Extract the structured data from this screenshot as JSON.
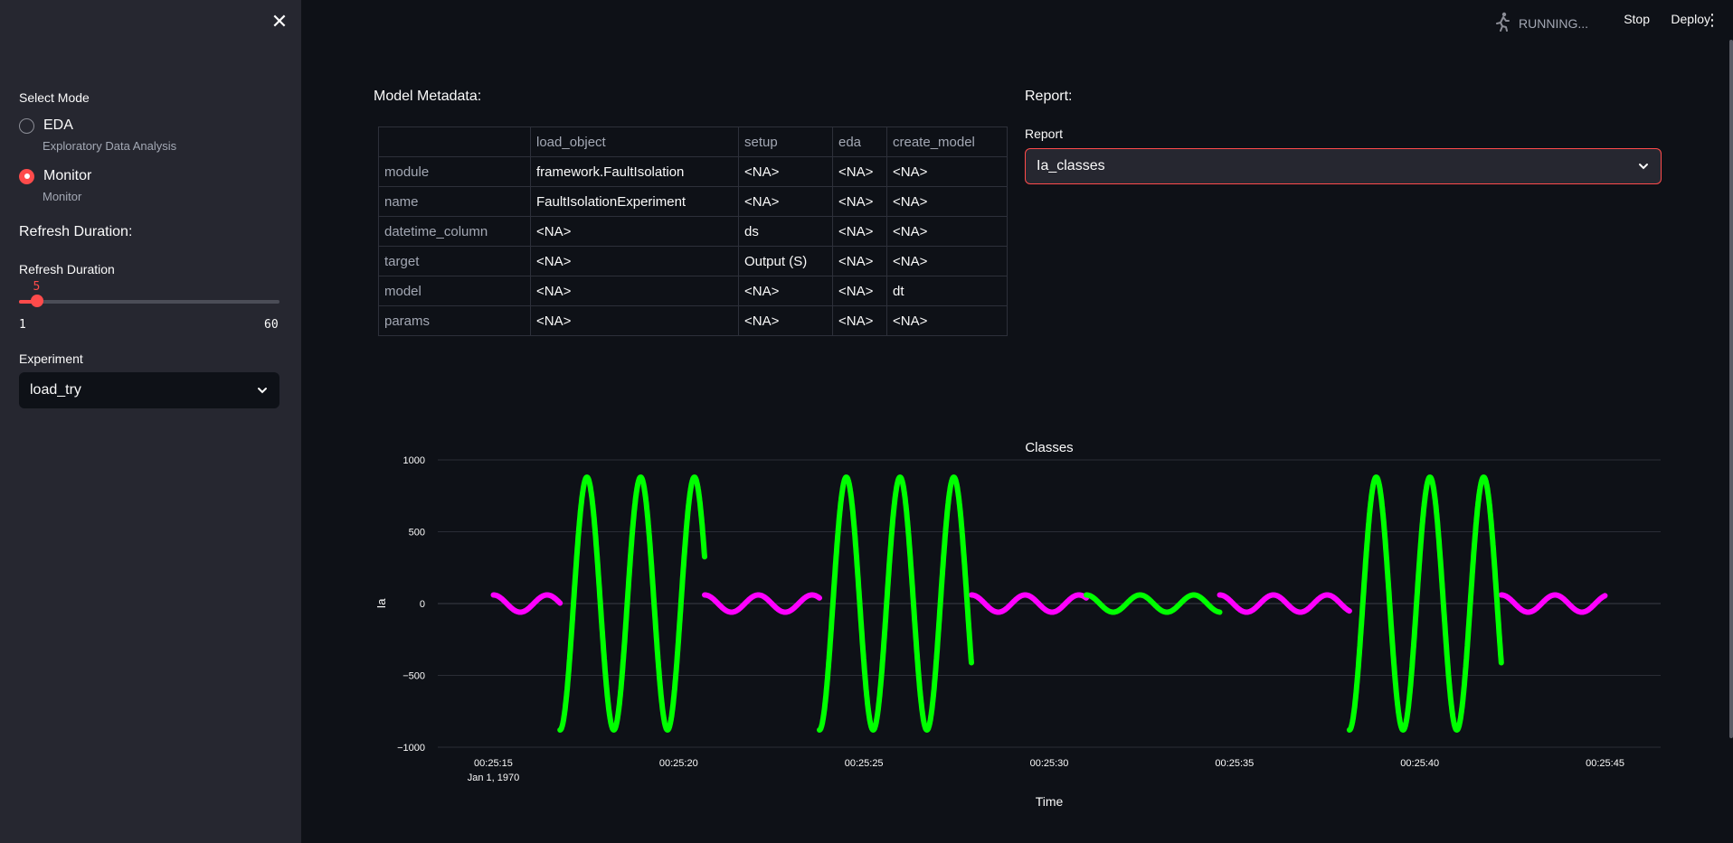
{
  "sidebar": {
    "close_icon": "close-icon",
    "mode_label": "Select Mode",
    "modes": [
      {
        "label": "EDA",
        "caption": "Exploratory Data Analysis",
        "checked": false
      },
      {
        "label": "Monitor",
        "caption": "Monitor",
        "checked": true
      }
    ],
    "refresh_heading": "Refresh Duration:",
    "slider": {
      "label": "Refresh Duration",
      "value": 5,
      "min": 1,
      "max": 60
    },
    "experiment": {
      "label": "Experiment",
      "value": "load_try"
    }
  },
  "topbar": {
    "status": "RUNNING...",
    "stop": "Stop",
    "deploy": "Deploy",
    "menu_icon": "kebab-menu-icon"
  },
  "metadata": {
    "title": "Model Metadata:",
    "columns": [
      "",
      "load_object",
      "setup",
      "eda",
      "create_model"
    ],
    "rows": [
      [
        "module",
        "framework.FaultIsolation",
        "<NA>",
        "<NA>",
        "<NA>"
      ],
      [
        "name",
        "FaultIsolationExperiment",
        "<NA>",
        "<NA>",
        "<NA>"
      ],
      [
        "datetime_column",
        "<NA>",
        "ds",
        "<NA>",
        "<NA>"
      ],
      [
        "target",
        "<NA>",
        "Output (S)",
        "<NA>",
        "<NA>"
      ],
      [
        "model",
        "<NA>",
        "<NA>",
        "<NA>",
        "dt"
      ],
      [
        "params",
        "<NA>",
        "<NA>",
        "<NA>",
        "<NA>"
      ]
    ]
  },
  "report": {
    "title": "Report:",
    "label": "Report",
    "value": "Ia_classes"
  },
  "colors": {
    "accent": "#ff4b4b",
    "class_a": "#ff00ff",
    "class_b": "#00ff00"
  },
  "chart_data": {
    "type": "scatter",
    "title": "Classes",
    "xlabel": "Time",
    "ylabel": "Ia",
    "ylim": [
      -1000,
      1000
    ],
    "yticks": [
      1000,
      500,
      0,
      -500,
      -1000
    ],
    "xticks": [
      "00:25:15",
      "00:25:20",
      "00:25:25",
      "00:25:30",
      "00:25:35",
      "00:25:40",
      "00:25:45"
    ],
    "xtick_sublabel": "Jan 1, 1970",
    "xlim_seconds": [
      13.5,
      46.5
    ],
    "grid": true,
    "series": [
      {
        "color": "#ff00ff",
        "segments": [
          {
            "start": 15.0,
            "end": 16.8,
            "amplitude": 60,
            "period": 1.45
          },
          {
            "start": 20.7,
            "end": 23.8,
            "amplitude": 60,
            "period": 1.45
          },
          {
            "start": 27.9,
            "end": 31.0,
            "amplitude": 60,
            "period": 1.45
          },
          {
            "start": 34.6,
            "end": 38.1,
            "amplitude": 60,
            "period": 1.45
          },
          {
            "start": 42.2,
            "end": 45.0,
            "amplitude": 60,
            "period": 1.45
          }
        ]
      },
      {
        "color": "#00ff00",
        "segments": [
          {
            "start": 16.8,
            "end": 20.7,
            "amplitude": 880,
            "period": 1.45
          },
          {
            "start": 23.8,
            "end": 27.9,
            "amplitude": 880,
            "period": 1.45
          },
          {
            "start": 31.0,
            "end": 34.6,
            "amplitude": 60,
            "period": 1.45
          },
          {
            "start": 38.1,
            "end": 42.2,
            "amplitude": 880,
            "period": 1.45
          }
        ]
      }
    ]
  }
}
